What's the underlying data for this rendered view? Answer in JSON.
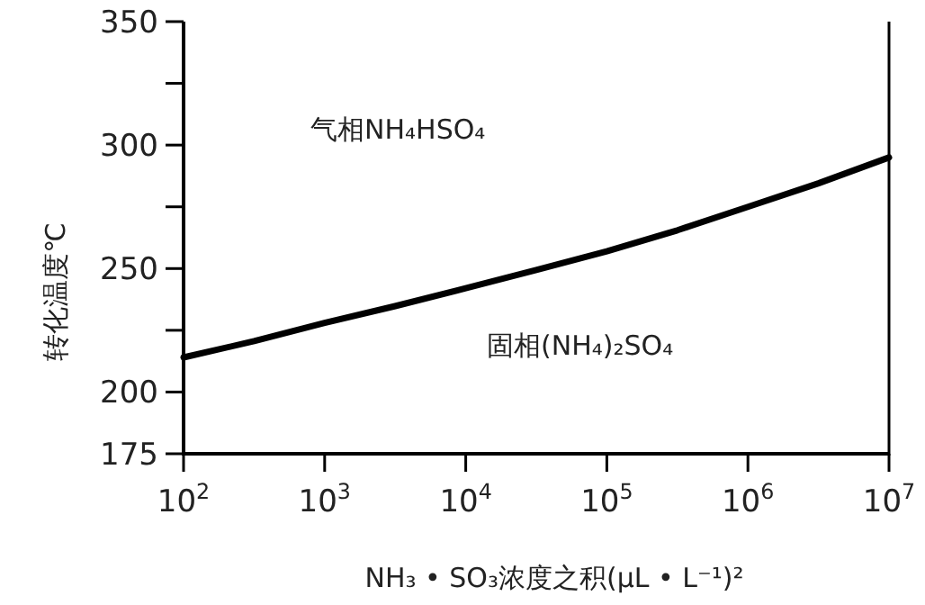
{
  "chart_data": {
    "type": "line",
    "xlabel": "NH₃ • SO₃浓度之积(μL • L⁻¹)²",
    "ylabel": "转化温度℃",
    "log": "x",
    "xlim": [
      100,
      10000000
    ],
    "ylim": [
      175,
      350
    ],
    "xticks": [
      {
        "value": 100,
        "label": "10$^{2}$"
      },
      {
        "value": 1000,
        "label": "10$^{3}$"
      },
      {
        "value": 10000,
        "label": "10$^{4}$"
      },
      {
        "value": 100000,
        "label": "10$^{5}$"
      },
      {
        "value": 1000000,
        "label": "10$^{6}$"
      },
      {
        "value": 10000000,
        "label": "10$^{7}$"
      }
    ],
    "yticks": [
      175,
      200,
      {
        "value": 225,
        "label": null
      },
      250,
      {
        "value": 275,
        "label": null
      },
      300,
      {
        "value": 325,
        "label": null
      },
      350
    ],
    "annotations": [
      "气相NH₄HSO₄",
      "固相(NH₄)₂SO₄"
    ],
    "grid": false,
    "line_style": "solid",
    "marker": "none",
    "series": [
      {
        "color": "#000000",
        "x": [
          100,
          316.2,
          1000,
          3162,
          10000,
          31623,
          100000,
          316228,
          1000000,
          3162278,
          10000000
        ],
        "values": [
          214,
          220.6,
          228,
          234.8,
          242,
          249.4,
          257,
          265.5,
          275,
          284.5,
          295
        ]
      }
    ]
  }
}
